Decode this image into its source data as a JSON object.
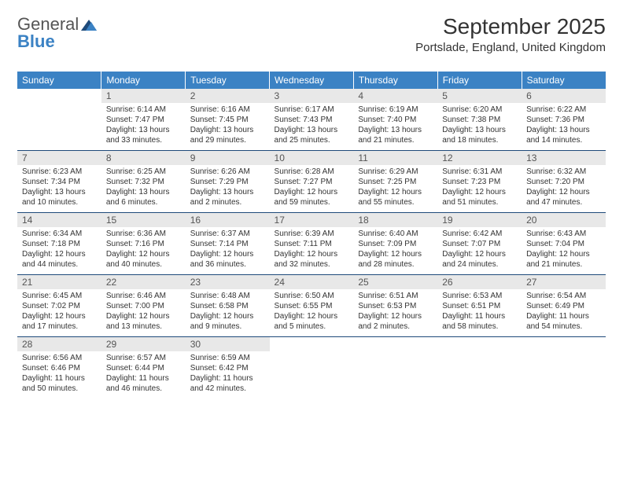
{
  "logo": {
    "part1": "General",
    "part2": "Blue"
  },
  "title": "September 2025",
  "location": "Portslade, England, United Kingdom",
  "colors": {
    "header_bg": "#3b82c4",
    "header_text": "#ffffff",
    "daynum_bg": "#e8e8e8",
    "daynum_text": "#555555",
    "body_text": "#333333",
    "row_border": "#1e4a7a",
    "page_bg": "#ffffff",
    "logo_gray": "#555555",
    "logo_blue": "#3b82c4"
  },
  "typography": {
    "title_size_pt": 21,
    "location_size_pt": 11,
    "header_size_pt": 9,
    "daynum_size_pt": 9,
    "body_size_pt": 7.5
  },
  "weekdays": [
    "Sunday",
    "Monday",
    "Tuesday",
    "Wednesday",
    "Thursday",
    "Friday",
    "Saturday"
  ],
  "weeks": [
    [
      {
        "n": "",
        "lines": []
      },
      {
        "n": "1",
        "lines": [
          "Sunrise: 6:14 AM",
          "Sunset: 7:47 PM",
          "Daylight: 13 hours and 33 minutes."
        ]
      },
      {
        "n": "2",
        "lines": [
          "Sunrise: 6:16 AM",
          "Sunset: 7:45 PM",
          "Daylight: 13 hours and 29 minutes."
        ]
      },
      {
        "n": "3",
        "lines": [
          "Sunrise: 6:17 AM",
          "Sunset: 7:43 PM",
          "Daylight: 13 hours and 25 minutes."
        ]
      },
      {
        "n": "4",
        "lines": [
          "Sunrise: 6:19 AM",
          "Sunset: 7:40 PM",
          "Daylight: 13 hours and 21 minutes."
        ]
      },
      {
        "n": "5",
        "lines": [
          "Sunrise: 6:20 AM",
          "Sunset: 7:38 PM",
          "Daylight: 13 hours and 18 minutes."
        ]
      },
      {
        "n": "6",
        "lines": [
          "Sunrise: 6:22 AM",
          "Sunset: 7:36 PM",
          "Daylight: 13 hours and 14 minutes."
        ]
      }
    ],
    [
      {
        "n": "7",
        "lines": [
          "Sunrise: 6:23 AM",
          "Sunset: 7:34 PM",
          "Daylight: 13 hours and 10 minutes."
        ]
      },
      {
        "n": "8",
        "lines": [
          "Sunrise: 6:25 AM",
          "Sunset: 7:32 PM",
          "Daylight: 13 hours and 6 minutes."
        ]
      },
      {
        "n": "9",
        "lines": [
          "Sunrise: 6:26 AM",
          "Sunset: 7:29 PM",
          "Daylight: 13 hours and 2 minutes."
        ]
      },
      {
        "n": "10",
        "lines": [
          "Sunrise: 6:28 AM",
          "Sunset: 7:27 PM",
          "Daylight: 12 hours and 59 minutes."
        ]
      },
      {
        "n": "11",
        "lines": [
          "Sunrise: 6:29 AM",
          "Sunset: 7:25 PM",
          "Daylight: 12 hours and 55 minutes."
        ]
      },
      {
        "n": "12",
        "lines": [
          "Sunrise: 6:31 AM",
          "Sunset: 7:23 PM",
          "Daylight: 12 hours and 51 minutes."
        ]
      },
      {
        "n": "13",
        "lines": [
          "Sunrise: 6:32 AM",
          "Sunset: 7:20 PM",
          "Daylight: 12 hours and 47 minutes."
        ]
      }
    ],
    [
      {
        "n": "14",
        "lines": [
          "Sunrise: 6:34 AM",
          "Sunset: 7:18 PM",
          "Daylight: 12 hours and 44 minutes."
        ]
      },
      {
        "n": "15",
        "lines": [
          "Sunrise: 6:36 AM",
          "Sunset: 7:16 PM",
          "Daylight: 12 hours and 40 minutes."
        ]
      },
      {
        "n": "16",
        "lines": [
          "Sunrise: 6:37 AM",
          "Sunset: 7:14 PM",
          "Daylight: 12 hours and 36 minutes."
        ]
      },
      {
        "n": "17",
        "lines": [
          "Sunrise: 6:39 AM",
          "Sunset: 7:11 PM",
          "Daylight: 12 hours and 32 minutes."
        ]
      },
      {
        "n": "18",
        "lines": [
          "Sunrise: 6:40 AM",
          "Sunset: 7:09 PM",
          "Daylight: 12 hours and 28 minutes."
        ]
      },
      {
        "n": "19",
        "lines": [
          "Sunrise: 6:42 AM",
          "Sunset: 7:07 PM",
          "Daylight: 12 hours and 24 minutes."
        ]
      },
      {
        "n": "20",
        "lines": [
          "Sunrise: 6:43 AM",
          "Sunset: 7:04 PM",
          "Daylight: 12 hours and 21 minutes."
        ]
      }
    ],
    [
      {
        "n": "21",
        "lines": [
          "Sunrise: 6:45 AM",
          "Sunset: 7:02 PM",
          "Daylight: 12 hours and 17 minutes."
        ]
      },
      {
        "n": "22",
        "lines": [
          "Sunrise: 6:46 AM",
          "Sunset: 7:00 PM",
          "Daylight: 12 hours and 13 minutes."
        ]
      },
      {
        "n": "23",
        "lines": [
          "Sunrise: 6:48 AM",
          "Sunset: 6:58 PM",
          "Daylight: 12 hours and 9 minutes."
        ]
      },
      {
        "n": "24",
        "lines": [
          "Sunrise: 6:50 AM",
          "Sunset: 6:55 PM",
          "Daylight: 12 hours and 5 minutes."
        ]
      },
      {
        "n": "25",
        "lines": [
          "Sunrise: 6:51 AM",
          "Sunset: 6:53 PM",
          "Daylight: 12 hours and 2 minutes."
        ]
      },
      {
        "n": "26",
        "lines": [
          "Sunrise: 6:53 AM",
          "Sunset: 6:51 PM",
          "Daylight: 11 hours and 58 minutes."
        ]
      },
      {
        "n": "27",
        "lines": [
          "Sunrise: 6:54 AM",
          "Sunset: 6:49 PM",
          "Daylight: 11 hours and 54 minutes."
        ]
      }
    ],
    [
      {
        "n": "28",
        "lines": [
          "Sunrise: 6:56 AM",
          "Sunset: 6:46 PM",
          "Daylight: 11 hours and 50 minutes."
        ]
      },
      {
        "n": "29",
        "lines": [
          "Sunrise: 6:57 AM",
          "Sunset: 6:44 PM",
          "Daylight: 11 hours and 46 minutes."
        ]
      },
      {
        "n": "30",
        "lines": [
          "Sunrise: 6:59 AM",
          "Sunset: 6:42 PM",
          "Daylight: 11 hours and 42 minutes."
        ]
      },
      {
        "n": "",
        "lines": []
      },
      {
        "n": "",
        "lines": []
      },
      {
        "n": "",
        "lines": []
      },
      {
        "n": "",
        "lines": []
      }
    ]
  ]
}
